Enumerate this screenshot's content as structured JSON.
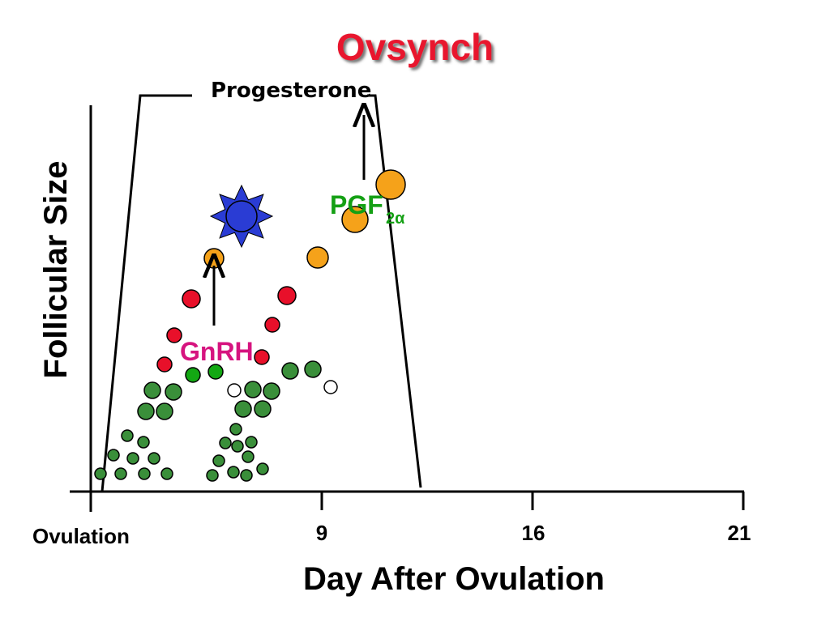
{
  "title": "Ovsynch",
  "progesterone_label": "Progesterone",
  "gnrh_label": "GnRH",
  "pgf_label": "PGF",
  "pgf_subscript": "2α",
  "y_axis_label": "Follicular Size",
  "x_axis_label": "Day After Ovulation",
  "x_ticks": [
    "Ovulation",
    "9",
    "16",
    "21"
  ],
  "colors": {
    "title": "#e8182e",
    "gnrh": "#d6147f",
    "pgf": "#14a014",
    "follicle_small": "#3a8f3a",
    "follicle_bright_green": "#13a813",
    "follicle_red": "#e8102a",
    "follicle_orange": "#f5a21a",
    "follicle_atretic": "#ffffff",
    "corpus_luteum": "#2a3cd4",
    "corpus_luteum_rays": "#2a3cd4"
  }
}
